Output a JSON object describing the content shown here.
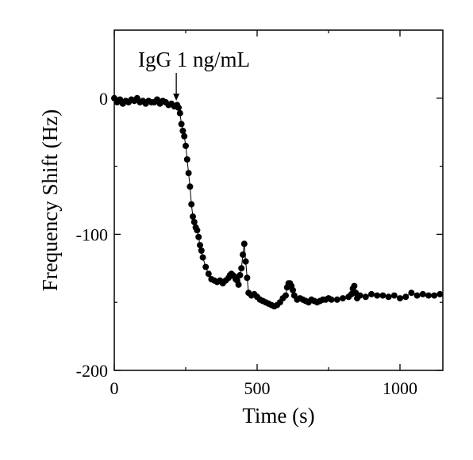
{
  "chart_data": {
    "type": "scatter",
    "title": "",
    "xlabel": "Time (s)",
    "ylabel": "Frequency Shift (Hz)",
    "xlim": [
      0,
      1150
    ],
    "ylim": [
      -200,
      50
    ],
    "xticks": [
      0,
      500,
      1000
    ],
    "xtick_labels": [
      "0",
      "500",
      "1000"
    ],
    "yticks": [
      0,
      -100,
      -200
    ],
    "ytick_labels": [
      "0",
      "-100",
      "-200"
    ],
    "grid": false,
    "legend": "none",
    "marker_color": "#000000",
    "annotation": {
      "text": "IgG 1 ng/mL",
      "x": 217,
      "y": -3,
      "arrow": "down"
    },
    "series": [
      {
        "x": [
          0,
          10,
          20,
          30,
          40,
          50,
          60,
          70,
          80,
          90,
          100,
          110,
          120,
          130,
          140,
          150,
          160,
          170,
          180,
          190,
          200,
          210,
          220,
          225,
          230,
          235,
          240,
          245,
          250,
          255,
          260,
          265,
          270,
          275,
          280,
          285,
          290,
          295,
          300,
          305,
          310,
          320,
          330,
          340,
          350,
          360,
          370,
          380,
          390,
          400,
          405,
          410,
          415,
          420,
          425,
          430,
          435,
          440,
          445,
          450,
          455,
          460,
          465,
          470,
          480,
          490,
          500,
          510,
          520,
          530,
          540,
          550,
          560,
          570,
          580,
          590,
          600,
          605,
          610,
          615,
          620,
          625,
          630,
          640,
          650,
          660,
          670,
          680,
          690,
          700,
          710,
          720,
          730,
          740,
          750,
          760,
          780,
          800,
          820,
          830,
          835,
          840,
          845,
          850,
          860,
          880,
          900,
          920,
          940,
          960,
          980,
          1000,
          1020,
          1040,
          1060,
          1080,
          1100,
          1120,
          1140
        ],
        "y": [
          0,
          -3,
          -1,
          -4,
          -2,
          -3,
          -1,
          -2,
          0,
          -3,
          -2,
          -4,
          -2,
          -3,
          -3,
          -1,
          -4,
          -2,
          -3,
          -5,
          -4,
          -6,
          -5,
          -7,
          -11,
          -19,
          -24,
          -28,
          -35,
          -45,
          -55,
          -65,
          -78,
          -87,
          -91,
          -95,
          -97,
          -102,
          -108,
          -112,
          -117,
          -124,
          -129,
          -133,
          -134,
          -135,
          -134,
          -136,
          -134,
          -132,
          -130,
          -129,
          -130,
          -131,
          -133,
          -134,
          -137,
          -130,
          -125,
          -115,
          -107,
          -120,
          -132,
          -143,
          -145,
          -144,
          -146,
          -148,
          -149,
          -150,
          -151,
          -152,
          -153,
          -152,
          -150,
          -147,
          -145,
          -139,
          -136,
          -136,
          -138,
          -141,
          -145,
          -148,
          -147,
          -148,
          -149,
          -150,
          -148,
          -149,
          -150,
          -149,
          -148,
          -148,
          -147,
          -148,
          -148,
          -147,
          -146,
          -144,
          -140,
          -138,
          -143,
          -147,
          -145,
          -146,
          -144,
          -145,
          -145,
          -146,
          -145,
          -147,
          -146,
          -143,
          -145,
          -144,
          -145,
          -145,
          -144
        ]
      }
    ]
  }
}
